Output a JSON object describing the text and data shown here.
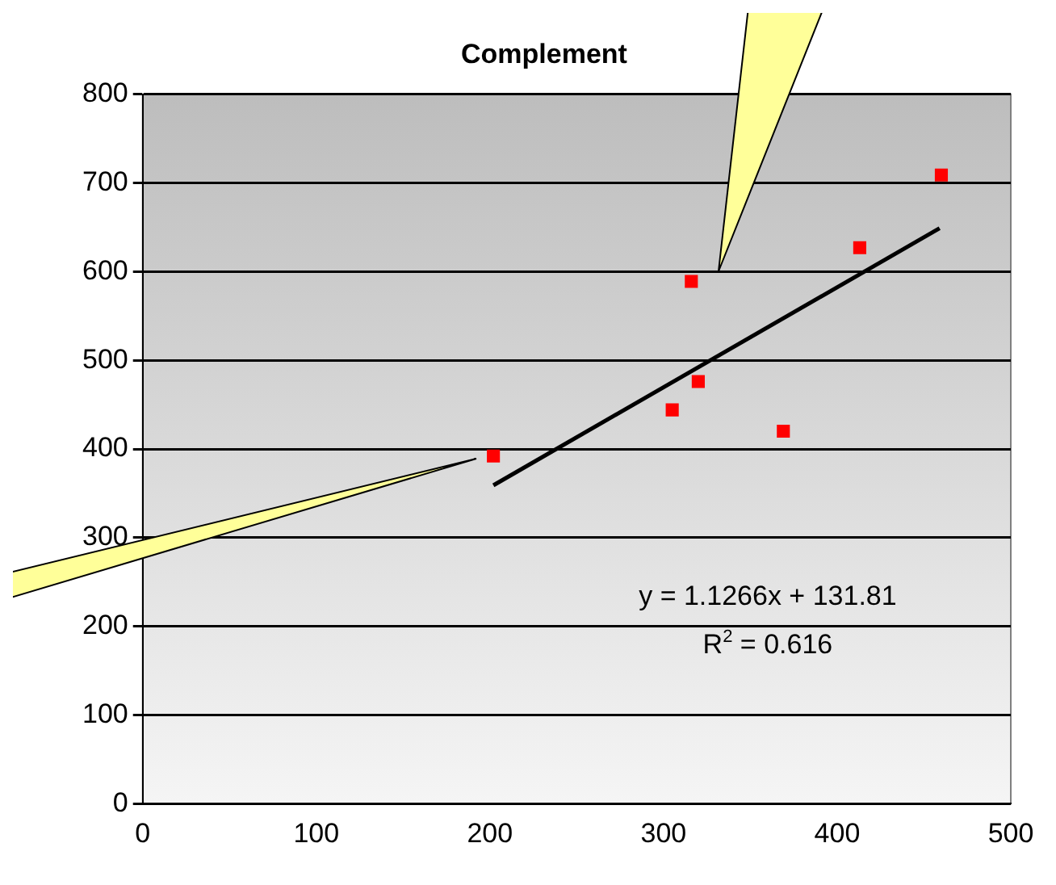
{
  "chart_data": {
    "type": "scatter",
    "title": "Complement",
    "series": [
      {
        "type": "scatter",
        "color": "#ff0000",
        "marker": "square",
        "x": [
          202,
          305,
          316,
          320,
          369,
          413,
          460
        ],
        "values": [
          392,
          444,
          589,
          476,
          420,
          627,
          709
        ]
      },
      {
        "type": "line",
        "color": "#000000",
        "marker": "none",
        "line_style": "solid",
        "x": [
          202,
          459
        ],
        "values": [
          359,
          649
        ]
      }
    ],
    "xlim": [
      0,
      500
    ],
    "xticks": [
      0,
      100,
      200,
      300,
      400,
      500
    ],
    "ylim": [
      0,
      800
    ],
    "yticks": [
      0,
      100,
      200,
      300,
      400,
      500,
      600,
      700,
      800
    ],
    "grid": "y",
    "legend": false,
    "annotations": [
      "y = 1.1266x + 131.81",
      "R$^{2}$ = 0.616"
    ]
  }
}
